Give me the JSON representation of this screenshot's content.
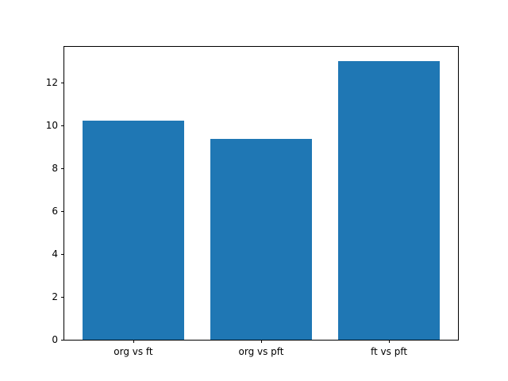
{
  "figure": {
    "background": "#ffffff",
    "axes_background": "#ffffff",
    "spine_color": "#000000"
  },
  "chart_data": {
    "type": "bar",
    "title": "",
    "xlabel": "",
    "ylabel": "",
    "categories": [
      "org vs ft",
      "org vs pft",
      "ft vs pft"
    ],
    "values": [
      10.2,
      9.35,
      13.0
    ],
    "x_positions": [
      0,
      1,
      2
    ],
    "xlim": [
      -0.54,
      2.54
    ],
    "ylim": [
      0,
      13.65
    ],
    "yticks": [
      0,
      2,
      4,
      6,
      8,
      10,
      12
    ],
    "bar_color": "#1f77b4",
    "bar_width_fraction": 0.8,
    "grid": false,
    "legend_position": "none"
  }
}
